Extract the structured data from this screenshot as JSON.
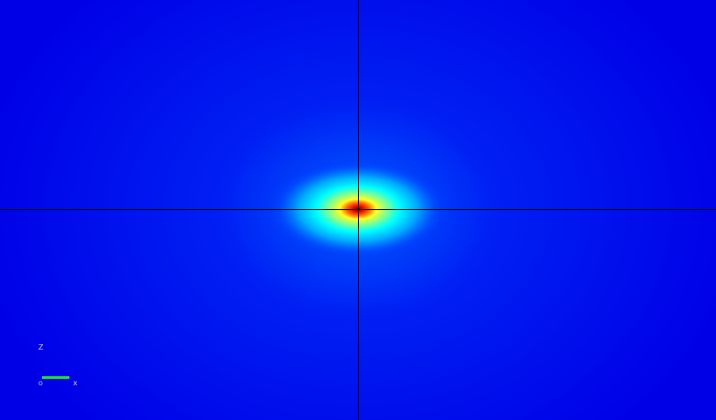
{
  "viewport": {
    "colormap": "jet",
    "background_color": "#0000e6",
    "hotspot_colors": [
      "#800000",
      "#ff0000",
      "#ffff00",
      "#00ffff",
      "#0000ff"
    ],
    "crosshair_color": "#000000"
  },
  "axis_triad": {
    "up_label": "Z",
    "origin_label": "o",
    "right_label": "x",
    "right_axis_color": "#22e022"
  }
}
